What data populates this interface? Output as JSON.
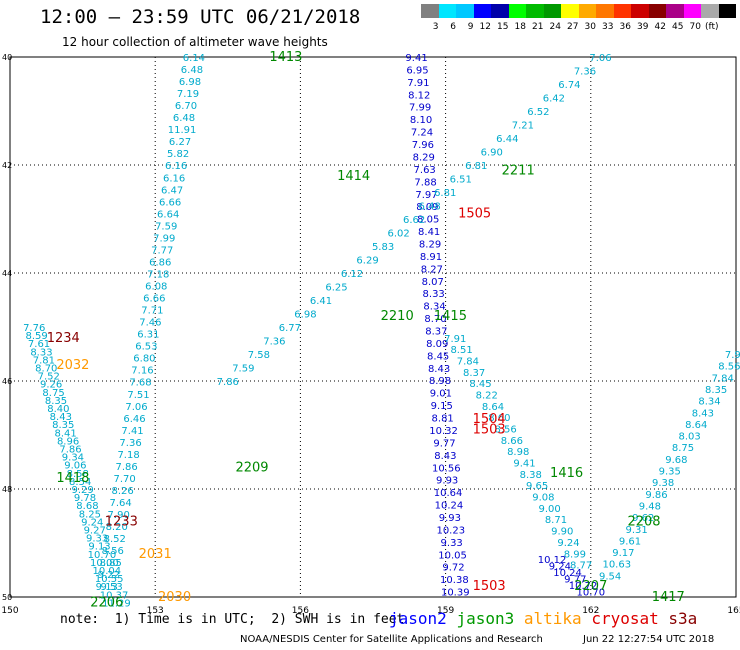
{
  "header": {
    "title": "12:00 – 23:59 UTC 06/21/2018",
    "subtitle": "12 hour collection of altimeter wave heights"
  },
  "legend": {
    "colors": [
      "#808080",
      "#00e6ff",
      "#00c8ff",
      "#0000ff",
      "#0000aa",
      "#00ff00",
      "#00bb00",
      "#009900",
      "#ffff00",
      "#ffaa00",
      "#ff7700",
      "#ff3300",
      "#cc0000",
      "#880000",
      "#aa0088",
      "#ff00ff",
      "#aaaaaa",
      "#000000"
    ],
    "ticks": [
      "3",
      "6",
      "9",
      "12",
      "15",
      "18",
      "21",
      "24",
      "27",
      "30",
      "33",
      "36",
      "39",
      "42",
      "45",
      "70",
      "(ft)"
    ]
  },
  "map": {
    "x_ticks": [
      "150",
      "153",
      "156",
      "159",
      "162",
      "165"
    ],
    "y_ticks": [
      "40",
      "42",
      "44",
      "46",
      "48",
      "50"
    ]
  },
  "labels": [
    {
      "t": "1413",
      "c": "green",
      "lon": 155.7,
      "lat": 40.0
    },
    {
      "t": "1414",
      "c": "green",
      "lon": 157.1,
      "lat": 42.2
    },
    {
      "t": "2210",
      "c": "green",
      "lon": 158.0,
      "lat": 44.8
    },
    {
      "t": "1415",
      "c": "green",
      "lon": 159.1,
      "lat": 44.8
    },
    {
      "t": "2211",
      "c": "green",
      "lon": 160.5,
      "lat": 42.1
    },
    {
      "t": "1505",
      "c": "red",
      "lon": 159.6,
      "lat": 42.9
    },
    {
      "t": "1504",
      "c": "red",
      "lon": 159.9,
      "lat": 46.7
    },
    {
      "t": "1503",
      "c": "red",
      "lon": 159.9,
      "lat": 46.9
    },
    {
      "t": "1503",
      "c": "red",
      "lon": 159.9,
      "lat": 49.8
    },
    {
      "t": "1234",
      "c": "darkred",
      "lon": 151.1,
      "lat": 45.2
    },
    {
      "t": "2032",
      "c": "orange",
      "lon": 151.3,
      "lat": 45.7
    },
    {
      "t": "1233",
      "c": "darkred",
      "lon": 152.3,
      "lat": 48.6
    },
    {
      "t": "2031",
      "c": "orange",
      "lon": 153.0,
      "lat": 49.2
    },
    {
      "t": "2030",
      "c": "orange",
      "lon": 153.4,
      "lat": 50.0
    },
    {
      "t": "2209",
      "c": "green",
      "lon": 155.0,
      "lat": 47.6
    },
    {
      "t": "1416",
      "c": "green",
      "lon": 161.5,
      "lat": 47.7
    },
    {
      "t": "2208",
      "c": "green",
      "lon": 163.1,
      "lat": 48.6
    },
    {
      "t": "2207",
      "c": "green",
      "lon": 162.0,
      "lat": 49.8
    },
    {
      "t": "1417",
      "c": "green",
      "lon": 163.6,
      "lat": 50.0
    },
    {
      "t": "2206",
      "c": "green",
      "lon": 152.0,
      "lat": 50.1
    },
    {
      "t": "1418",
      "c": "green",
      "lon": 151.3,
      "lat": 47.8
    }
  ],
  "tracks": [
    {
      "name": "jason3-NE",
      "color": "#00aacc",
      "from": [
        153.8,
        40.0
      ],
      "to": [
        152.0,
        49.8
      ],
      "values": [
        "6.14",
        "6.48",
        "6.98",
        "7.19",
        "6.70",
        "6.48",
        "11.91",
        "6.27",
        "5.82",
        "6.16",
        "6.16",
        "6.47",
        "6.66",
        "6.64",
        "7.59",
        "7.99",
        "7.77",
        "6.86",
        "7.18",
        "6.08",
        "6.66",
        "7.71",
        "7.46",
        "6.31",
        "6.53",
        "6.80",
        "7.16",
        "7.68",
        "7.51",
        "7.06",
        "6.46",
        "7.41",
        "7.36",
        "7.18",
        "7.86",
        "7.70",
        "8.26",
        "7.64",
        "7.90",
        "8.20",
        "8.52",
        "8.56",
        "8.85",
        "9.22",
        "9.13"
      ]
    },
    {
      "name": "jason2-S",
      "color": "#0000cc",
      "from": [
        158.4,
        40.0
      ],
      "to": [
        159.2,
        49.9
      ],
      "values": [
        "9.41",
        "6.95",
        "7.91",
        "8.12",
        "7.99",
        "8.10",
        "7.24",
        "7.96",
        "8.29",
        "7.63",
        "7.88",
        "7.97",
        "8.09",
        "8.05",
        "8.41",
        "8.29",
        "8.91",
        "8.27",
        "8.07",
        "8.33",
        "8.34",
        "8.70",
        "8.37",
        "8.09",
        "8.45",
        "8.43",
        "8.98",
        "9.01",
        "9.15",
        "8.81",
        "10.32",
        "9.77",
        "8.43",
        "10.56",
        "9.93",
        "10.64",
        "10.24",
        "9.93",
        "10.23",
        "9.33",
        "10.05",
        "9.72",
        "10.38",
        "10.39"
      ]
    },
    {
      "name": "jason3-NW",
      "color": "#00aacc",
      "from": [
        162.2,
        40.0
      ],
      "to": [
        154.5,
        46.0
      ],
      "values": [
        "7.06",
        "7.36",
        "6.74",
        "6.42",
        "6.52",
        "7.21",
        "6.44",
        "6.90",
        "6.81",
        "6.51",
        "6.81",
        "6.48",
        "6.62",
        "6.02",
        "5.83",
        "6.29",
        "6.12",
        "6.25",
        "6.41",
        "6.98",
        "6.77",
        "7.36",
        "7.58",
        "7.59",
        "7.86"
      ]
    },
    {
      "name": "jason2-SE",
      "color": "#00aacc",
      "from": [
        159.2,
        45.2
      ],
      "to": [
        161.8,
        49.4
      ],
      "values": [
        "7.91",
        "8.51",
        "7.84",
        "8.37",
        "8.45",
        "8.22",
        "8.64",
        "8.60",
        "8.56",
        "8.66",
        "8.98",
        "9.41",
        "8.38",
        "9.65",
        "9.08",
        "9.00",
        "8.71",
        "9.90",
        "9.24",
        "8.99",
        "8.77"
      ]
    },
    {
      "name": "west-track",
      "color": "#00aacc",
      "from": [
        150.5,
        45.0
      ],
      "to": [
        152.2,
        50.1
      ],
      "values": [
        "7.76",
        "8.59",
        "7.61",
        "8.33",
        "7.81",
        "8.70",
        "7.52",
        "9.26",
        "8.75",
        "8.35",
        "8.40",
        "8.43",
        "8.35",
        "8.41",
        "8.96",
        "7.86",
        "9.34",
        "9.06",
        "8.58",
        "8.54",
        "9.29",
        "9.78",
        "8.68",
        "8.25",
        "9.24",
        "9.27",
        "9.33",
        "9.13",
        "10.70",
        "10.00",
        "10.04",
        "10.55",
        "9.53",
        "10.37",
        "11.29"
      ]
    },
    {
      "name": "east-track",
      "color": "#00aacc",
      "from": [
        165.0,
        45.5
      ],
      "to": [
        162.4,
        49.6
      ],
      "values": [
        "7.91",
        "8.56",
        "7.84",
        "8.35",
        "8.34",
        "8.43",
        "8.64",
        "8.03",
        "8.75",
        "9.68",
        "9.35",
        "9.38",
        "9.86",
        "9.48",
        "9.62",
        "9.31",
        "9.61",
        "9.17",
        "10.63",
        "9.54"
      ]
    },
    {
      "name": "bottom-row",
      "color": "#0000cc",
      "from": [
        161.2,
        49.3
      ],
      "to": [
        162.0,
        49.9
      ],
      "values": [
        "10.12",
        "9.24",
        "10.24",
        "9.77",
        "10.72",
        "10.70"
      ]
    }
  ],
  "footer": {
    "note": "note:  1) Time is in UTC;  2) SWH is in feet",
    "sat_jason2": "jason2",
    "sat_jason3": "jason3",
    "sat_altika": "altika",
    "sat_cryosat": "cryosat",
    "sat_s3a": "s3a",
    "credit": "NOAA/NESDIS Center for Satellite Applications and Research",
    "stamp": "Jun 22 12:27:54 UTC 2018"
  }
}
